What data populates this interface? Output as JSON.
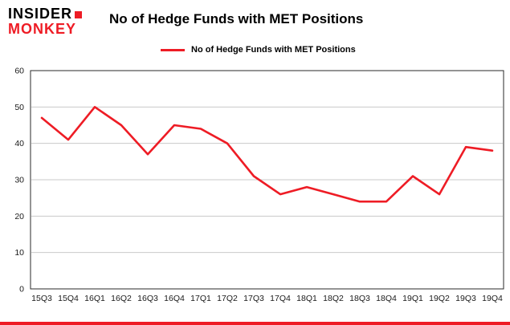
{
  "header": {
    "logo_line1": "INSIDER",
    "logo_line2": "MONKEY",
    "title": "No of Hedge Funds with MET Positions"
  },
  "legend": {
    "label": "No of Hedge Funds with MET Positions"
  },
  "colors": {
    "red": "#ee1c25",
    "grid": "#c9c9c9",
    "border": "#2a2a2a",
    "tick_text": "#1a1a1a"
  },
  "chart_data": {
    "type": "line",
    "title": "No of Hedge Funds with MET Positions",
    "categories": [
      "15Q3",
      "15Q4",
      "16Q1",
      "16Q2",
      "16Q3",
      "16Q4",
      "17Q1",
      "17Q2",
      "17Q3",
      "17Q4",
      "18Q1",
      "18Q2",
      "18Q3",
      "18Q4",
      "19Q1",
      "19Q2",
      "19Q3",
      "19Q4"
    ],
    "values": [
      47,
      41,
      50,
      45,
      37,
      45,
      44,
      40,
      31,
      26,
      28,
      26,
      24,
      24,
      31,
      26,
      39,
      38
    ],
    "xlabel": "",
    "ylabel": "",
    "ylim": [
      0,
      60
    ],
    "yticks": [
      0,
      10,
      20,
      30,
      40,
      50,
      60
    ],
    "grid": true,
    "legend_position": "top-left",
    "line_color": "#ee1c25"
  }
}
